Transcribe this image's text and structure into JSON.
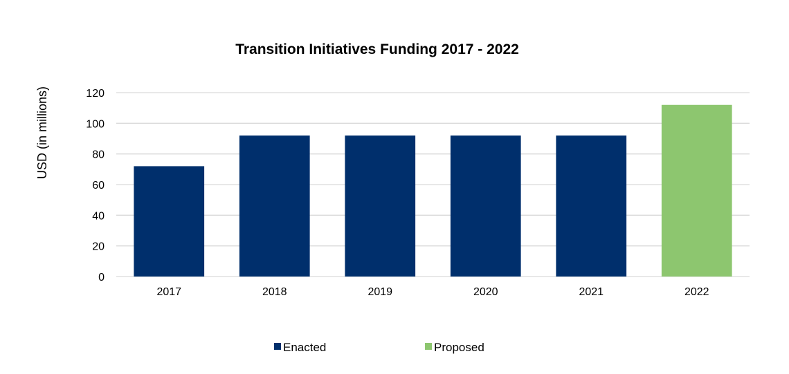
{
  "chart_data": {
    "type": "bar",
    "title": "Transition Initiatives Funding 2017 - 2022",
    "xlabel": "",
    "ylabel": "USD (in millions)",
    "ylim": [
      0,
      120
    ],
    "yticks": [
      0,
      20,
      40,
      60,
      80,
      100,
      120
    ],
    "grid": true,
    "legend_position": "bottom",
    "categories": [
      "2017",
      "2018",
      "2019",
      "2020",
      "2021",
      "2022"
    ],
    "values": [
      72,
      92,
      92,
      92,
      92,
      112
    ],
    "bar_series": [
      "Enacted",
      "Enacted",
      "Enacted",
      "Enacted",
      "Enacted",
      "Proposed"
    ],
    "legend": [
      {
        "name": "Enacted",
        "color": "#002f6c"
      },
      {
        "name": "Proposed",
        "color": "#8dc66f"
      }
    ]
  }
}
